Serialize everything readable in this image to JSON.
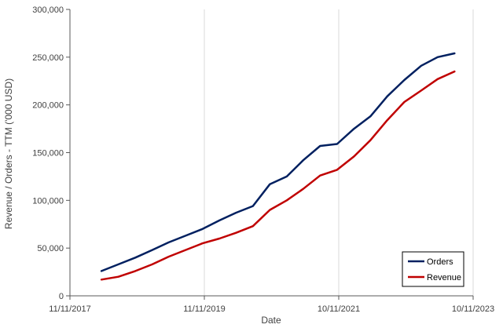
{
  "chart_data": {
    "type": "line",
    "title": "",
    "xlabel": "Date",
    "ylabel": "Revenue / Orders - TTM ('000 USD)",
    "x_ticks": [
      "11/11/2017",
      "11/11/2019",
      "10/11/2021",
      "10/11/2023"
    ],
    "y_ticks": [
      "0",
      "50,000",
      "100,000",
      "150,000",
      "200,000",
      "250,000",
      "300,000"
    ],
    "ylim": [
      0,
      300000
    ],
    "xlim": [
      "2017-11-11",
      "2023-11-10"
    ],
    "grid": "vertical",
    "legend": "bottom-right",
    "series": [
      {
        "name": "Orders",
        "color": "#002060",
        "points": [
          [
            "2018-05-01",
            26000
          ],
          [
            "2018-08-01",
            33000
          ],
          [
            "2018-11-01",
            40000
          ],
          [
            "2019-02-01",
            48000
          ],
          [
            "2019-05-01",
            56000
          ],
          [
            "2019-08-01",
            63000
          ],
          [
            "2019-11-01",
            70000
          ],
          [
            "2020-02-01",
            79000
          ],
          [
            "2020-05-01",
            87000
          ],
          [
            "2020-08-01",
            94000
          ],
          [
            "2020-11-01",
            117000
          ],
          [
            "2021-02-01",
            125000
          ],
          [
            "2021-05-01",
            142000
          ],
          [
            "2021-08-01",
            157000
          ],
          [
            "2021-11-01",
            159000
          ],
          [
            "2022-02-01",
            175000
          ],
          [
            "2022-05-01",
            188000
          ],
          [
            "2022-08-01",
            209000
          ],
          [
            "2022-11-01",
            226000
          ],
          [
            "2023-02-01",
            241000
          ],
          [
            "2023-05-01",
            250000
          ],
          [
            "2023-08-01",
            254000
          ]
        ]
      },
      {
        "name": "Revenue",
        "color": "#C00000",
        "points": [
          [
            "2018-05-01",
            17000
          ],
          [
            "2018-08-01",
            20000
          ],
          [
            "2018-11-01",
            26000
          ],
          [
            "2019-02-01",
            33000
          ],
          [
            "2019-05-01",
            41000
          ],
          [
            "2019-08-01",
            48000
          ],
          [
            "2019-11-01",
            55000
          ],
          [
            "2020-02-01",
            60000
          ],
          [
            "2020-05-01",
            66000
          ],
          [
            "2020-08-01",
            73000
          ],
          [
            "2020-11-01",
            90000
          ],
          [
            "2021-02-01",
            100000
          ],
          [
            "2021-05-01",
            112000
          ],
          [
            "2021-08-01",
            126000
          ],
          [
            "2021-11-01",
            132000
          ],
          [
            "2022-02-01",
            146000
          ],
          [
            "2022-05-01",
            163000
          ],
          [
            "2022-08-01",
            184000
          ],
          [
            "2022-11-01",
            203000
          ],
          [
            "2023-02-01",
            215000
          ],
          [
            "2023-05-01",
            227000
          ],
          [
            "2023-08-01",
            235000
          ]
        ]
      }
    ]
  }
}
